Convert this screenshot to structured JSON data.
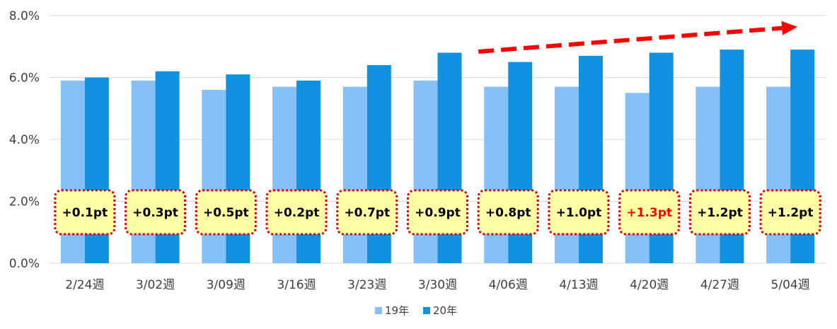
{
  "chart_data": {
    "type": "bar",
    "categories": [
      "2/24週",
      "3/02週",
      "3/09週",
      "3/16週",
      "3/23週",
      "3/30週",
      "4/06週",
      "4/13週",
      "4/20週",
      "4/27週",
      "5/04週"
    ],
    "series": [
      {
        "name": "19年",
        "color": "#85c1f7",
        "values": [
          5.9,
          5.9,
          5.6,
          5.7,
          5.7,
          5.9,
          5.7,
          5.7,
          5.5,
          5.7,
          5.7
        ]
      },
      {
        "name": "20年",
        "color": "#1192e0",
        "values": [
          6.0,
          6.2,
          6.1,
          5.9,
          6.4,
          6.8,
          6.5,
          6.7,
          6.8,
          6.9,
          6.9
        ]
      }
    ],
    "ylim": [
      0,
      8
    ],
    "yticks": [
      "0.0%",
      "2.0%",
      "4.0%",
      "6.0%",
      "8.0%"
    ],
    "annotations": [
      {
        "text": "+0.1pt",
        "color": "#000000"
      },
      {
        "text": "+0.3pt",
        "color": "#000000"
      },
      {
        "text": "+0.5pt",
        "color": "#000000"
      },
      {
        "text": "+0.2pt",
        "color": "#000000"
      },
      {
        "text": "+0.7pt",
        "color": "#000000"
      },
      {
        "text": "+0.9pt",
        "color": "#000000"
      },
      {
        "text": "+0.8pt",
        "color": "#000000"
      },
      {
        "text": "+1.0pt",
        "color": "#000000"
      },
      {
        "text": "+1.3pt",
        "color": "#ff0000"
      },
      {
        "text": "+1.2pt",
        "color": "#000000"
      },
      {
        "text": "+1.2pt",
        "color": "#000000"
      }
    ],
    "annotation_box": {
      "fill": "#ffffa6",
      "border": "#d9001b"
    },
    "trend_arrow": {
      "color": "#ff0000",
      "style": "dashed",
      "from_category": "4/06週",
      "to_category": "5/04週"
    },
    "grid": true,
    "legend_position": "bottom"
  }
}
